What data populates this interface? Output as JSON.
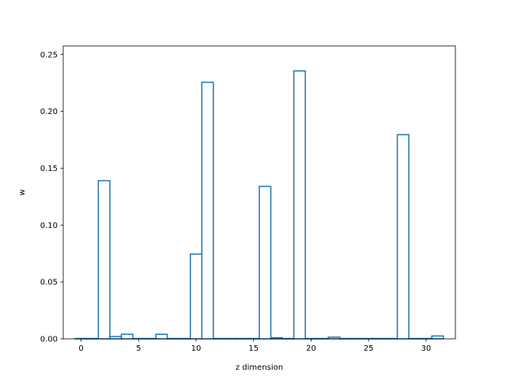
{
  "chart_data": {
    "type": "bar",
    "style": "step-outline",
    "title": "",
    "xlabel": "z dimension",
    "ylabel": "w",
    "xlim": [
      -1.55,
      32.55
    ],
    "ylim": [
      0,
      0.2575
    ],
    "xticks": [
      0,
      5,
      10,
      15,
      20,
      25,
      30
    ],
    "yticks": [
      0.0,
      0.05,
      0.1,
      0.15,
      0.2,
      0.25
    ],
    "xtick_labels": [
      "0",
      "5",
      "10",
      "15",
      "20",
      "25",
      "30"
    ],
    "ytick_labels": [
      "0.00",
      "0.05",
      "0.10",
      "0.15",
      "0.20",
      "0.25"
    ],
    "x": [
      0,
      1,
      2,
      3,
      4,
      5,
      6,
      7,
      8,
      9,
      10,
      11,
      12,
      13,
      14,
      15,
      16,
      17,
      18,
      19,
      20,
      21,
      22,
      23,
      24,
      25,
      26,
      27,
      28,
      29,
      30,
      31
    ],
    "values": [
      0.0003,
      0.0003,
      0.139,
      0.002,
      0.004,
      0.0003,
      0.0003,
      0.004,
      0.0003,
      0.0003,
      0.0745,
      0.2255,
      0.0003,
      0.0003,
      0.0003,
      0.0003,
      0.134,
      0.001,
      0.0003,
      0.2355,
      0.0003,
      0.0003,
      0.0015,
      0.0003,
      0.0003,
      0.0003,
      0.0003,
      0.0003,
      0.1795,
      0.0003,
      0.0003,
      0.0025
    ],
    "grid": false,
    "line_color": "#1f77b4"
  }
}
